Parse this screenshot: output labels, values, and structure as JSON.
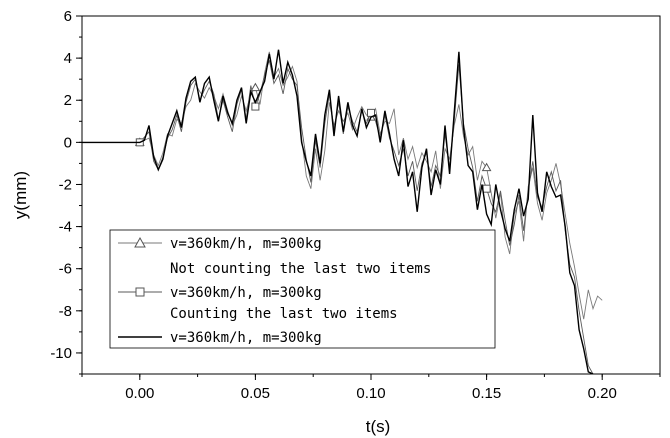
{
  "chart_data": {
    "type": "line",
    "xlabel": "t(s)",
    "ylabel": "y(mm)",
    "xlim": [
      -0.025,
      0.225
    ],
    "ylim": [
      -11,
      6
    ],
    "xticks": [
      "0.00",
      "0.05",
      "0.10",
      "0.15",
      "0.20"
    ],
    "xtick_values": [
      0,
      0.05,
      0.1,
      0.15,
      0.2
    ],
    "yticks": [
      "6",
      "4",
      "2",
      "0",
      "-2",
      "-4",
      "-6",
      "-8",
      "-10"
    ],
    "ytick_values": [
      6,
      4,
      2,
      0,
      -2,
      -4,
      -6,
      -8,
      -10
    ],
    "grid": false,
    "legend_position": "bottom-left",
    "legend_entries": [
      {
        "marker": "triangle",
        "line1": "v=360km/h, m=300kg",
        "line2": "Not counting the last two items"
      },
      {
        "marker": "square",
        "line1": "v=360km/h, m=300kg",
        "line2": "Counting the last two items"
      },
      {
        "marker": "none",
        "line1": "v=360km/h, m=300kg",
        "line2": ""
      }
    ],
    "series": [
      {
        "marker": "triangle",
        "color": "#7a7a7a",
        "x": [
          -0.025,
          0,
          0.004,
          0.006,
          0.008,
          0.01,
          0.012,
          0.014,
          0.016,
          0.018,
          0.02,
          0.022,
          0.024,
          0.026,
          0.028,
          0.03,
          0.032,
          0.034,
          0.036,
          0.038,
          0.04,
          0.042,
          0.044,
          0.046,
          0.048,
          0.05,
          0.052,
          0.054,
          0.056,
          0.058,
          0.06,
          0.062,
          0.064,
          0.066,
          0.068,
          0.07,
          0.072,
          0.074,
          0.076,
          0.078,
          0.08,
          0.082,
          0.084,
          0.086,
          0.088,
          0.09,
          0.092,
          0.094,
          0.096,
          0.098,
          0.1,
          0.102,
          0.104,
          0.106,
          0.108,
          0.11,
          0.112,
          0.114,
          0.116,
          0.118,
          0.12,
          0.122,
          0.124,
          0.126,
          0.128,
          0.13,
          0.132,
          0.134,
          0.136,
          0.138,
          0.14,
          0.142,
          0.144,
          0.146,
          0.148,
          0.15,
          0.152,
          0.154,
          0.156,
          0.158,
          0.16,
          0.162,
          0.164,
          0.166,
          0.168,
          0.17,
          0.172,
          0.174,
          0.176,
          0.178,
          0.18,
          0.182,
          0.184,
          0.186,
          0.188,
          0.19,
          0.192,
          0.194,
          0.196,
          0.198,
          0.2
        ],
        "y": [
          0,
          0,
          0.2,
          -0.6,
          -1.1,
          -0.5,
          0.4,
          0.3,
          1.1,
          0.9,
          1.7,
          2.0,
          2.8,
          2.4,
          2.1,
          2.6,
          2.2,
          1.6,
          2.3,
          1.5,
          0.8,
          1.3,
          2.2,
          1.5,
          2.3,
          2.6,
          1.8,
          3.3,
          4.3,
          3.1,
          3.5,
          2.7,
          3.1,
          3.6,
          2.9,
          0.2,
          -1.6,
          -2.2,
          -0.3,
          -1.8,
          -0.4,
          1.9,
          0.8,
          1.5,
          1.0,
          1.4,
          0.6,
          1.2,
          1.7,
          1.3,
          1.2,
          1.6,
          0.4,
          1.0,
          0.9,
          1.6,
          -0.6,
          0.2,
          -0.8,
          -0.2,
          -1.2,
          -0.5,
          -0.9,
          -1.4,
          -0.4,
          -2.2,
          -0.3,
          -0.8,
          0.8,
          1.8,
          0.3,
          -0.6,
          -0.2,
          -1.8,
          -0.9,
          -1.2,
          -2.4,
          -3.6,
          -2.4,
          -4.5,
          -5.3,
          -3.4,
          -2.8,
          -4.7,
          -2.1,
          -1.2,
          -2.9,
          -3.7,
          -2.4,
          -1.8,
          -1.0,
          -2.0,
          -3.4,
          -4.8,
          -5.9,
          -7.2,
          -8.4,
          -7.0,
          -7.9,
          -7.3,
          -7.5
        ]
      },
      {
        "marker": "square",
        "color": "#5a5a5a",
        "x": [
          -0.025,
          0,
          0.004,
          0.006,
          0.008,
          0.01,
          0.012,
          0.014,
          0.016,
          0.018,
          0.02,
          0.022,
          0.024,
          0.026,
          0.028,
          0.03,
          0.032,
          0.034,
          0.036,
          0.038,
          0.04,
          0.042,
          0.044,
          0.046,
          0.048,
          0.05,
          0.052,
          0.054,
          0.056,
          0.058,
          0.06,
          0.062,
          0.064,
          0.066,
          0.068,
          0.07,
          0.072,
          0.074,
          0.076,
          0.078,
          0.08,
          0.082,
          0.084,
          0.086,
          0.088,
          0.09,
          0.092,
          0.094,
          0.096,
          0.098,
          0.1,
          0.102,
          0.104,
          0.106,
          0.108,
          0.11,
          0.112,
          0.114,
          0.116,
          0.118,
          0.12,
          0.122,
          0.124,
          0.126,
          0.128,
          0.13,
          0.132,
          0.134,
          0.136,
          0.138,
          0.14,
          0.142,
          0.144,
          0.146,
          0.148,
          0.15,
          0.152,
          0.154,
          0.156,
          0.158,
          0.16,
          0.162,
          0.164,
          0.166,
          0.168,
          0.17,
          0.172,
          0.174,
          0.176,
          0.178,
          0.18,
          0.182,
          0.184,
          0.186,
          0.188,
          0.19,
          0.192,
          0.194,
          0.196
        ],
        "y": [
          0,
          0,
          0.5,
          -0.9,
          -1.3,
          -0.7,
          0.2,
          0.6,
          1.3,
          0.5,
          1.9,
          2.7,
          3.0,
          2.0,
          2.5,
          2.9,
          2.3,
          1.1,
          2.0,
          1.2,
          0.5,
          1.8,
          2.5,
          1.1,
          2.7,
          1.7,
          2.3,
          3.2,
          3.9,
          2.8,
          3.2,
          2.3,
          3.5,
          3.0,
          2.7,
          0.7,
          -0.8,
          -1.9,
          0.1,
          -1.2,
          0.9,
          2.3,
          0.6,
          1.9,
          0.4,
          1.7,
          1.0,
          0.5,
          1.5,
          0.9,
          1.4,
          1.0,
          0.2,
          1.3,
          0.2,
          -0.4,
          -1.1,
          -0.3,
          -1.6,
          -0.9,
          -2.3,
          -1.0,
          -0.5,
          -2.1,
          -1.1,
          -1.6,
          0.4,
          -1.2,
          1.0,
          3.7,
          0.9,
          -0.3,
          -1.2,
          -2.8,
          -1.6,
          -2.2,
          -2.9,
          -3.3,
          -2.3,
          -3.7,
          -4.9,
          -3.9,
          -2.5,
          -4.2,
          -2.3,
          -0.9,
          -2.6,
          -3.1,
          -2.1,
          -1.4,
          -2.3,
          -1.8,
          -4.2,
          -5.8,
          -6.4,
          -8.0,
          -9.3,
          -10.6,
          -11.0
        ]
      },
      {
        "marker": "none",
        "color": "#000000",
        "x": [
          -0.025,
          0,
          0.002,
          0.004,
          0.006,
          0.008,
          0.01,
          0.012,
          0.014,
          0.016,
          0.018,
          0.02,
          0.022,
          0.024,
          0.026,
          0.028,
          0.03,
          0.032,
          0.034,
          0.036,
          0.038,
          0.04,
          0.042,
          0.044,
          0.046,
          0.048,
          0.05,
          0.052,
          0.054,
          0.056,
          0.058,
          0.06,
          0.062,
          0.064,
          0.066,
          0.068,
          0.07,
          0.072,
          0.074,
          0.076,
          0.078,
          0.08,
          0.082,
          0.084,
          0.086,
          0.088,
          0.09,
          0.092,
          0.094,
          0.096,
          0.098,
          0.1,
          0.102,
          0.104,
          0.106,
          0.108,
          0.11,
          0.112,
          0.114,
          0.116,
          0.118,
          0.12,
          0.122,
          0.124,
          0.126,
          0.128,
          0.13,
          0.132,
          0.134,
          0.136,
          0.138,
          0.14,
          0.142,
          0.144,
          0.146,
          0.148,
          0.15,
          0.152,
          0.154,
          0.156,
          0.158,
          0.16,
          0.162,
          0.164,
          0.166,
          0.168,
          0.17,
          0.172,
          0.174,
          0.176,
          0.178,
          0.18,
          0.182,
          0.184,
          0.186,
          0.188,
          0.19,
          0.192,
          0.194,
          0.196
        ],
        "y": [
          0,
          0,
          0.1,
          0.8,
          -0.7,
          -1.3,
          -0.8,
          0.3,
          0.9,
          1.5,
          0.7,
          2.1,
          2.9,
          3.1,
          1.9,
          2.8,
          3.1,
          2.0,
          1.0,
          2.2,
          1.4,
          0.9,
          2.0,
          2.6,
          0.9,
          2.4,
          1.9,
          2.4,
          2.9,
          4.2,
          3.0,
          4.4,
          2.8,
          3.8,
          3.2,
          2.2,
          0.0,
          -0.9,
          -1.6,
          0.4,
          -1.0,
          1.3,
          2.5,
          0.3,
          2.2,
          0.5,
          1.9,
          0.8,
          0.3,
          1.6,
          0.7,
          1.2,
          1.3,
          0.0,
          1.5,
          0.4,
          -0.8,
          -1.6,
          0.1,
          -2.1,
          -1.4,
          -3.3,
          -1.2,
          -0.3,
          -2.5,
          -1.3,
          -2.0,
          0.8,
          -1.5,
          1.4,
          4.3,
          0.7,
          -1.1,
          -1.4,
          -3.2,
          -2.0,
          -3.4,
          -3.9,
          -2.0,
          -3.2,
          -4.1,
          -4.7,
          -3.2,
          -2.2,
          -3.5,
          -2.7,
          1.3,
          -2.4,
          -3.3,
          -1.4,
          -2.1,
          -2.6,
          -2.5,
          -4.0,
          -6.2,
          -6.8,
          -8.9,
          -9.8,
          -10.9,
          -11.0
        ]
      }
    ]
  }
}
